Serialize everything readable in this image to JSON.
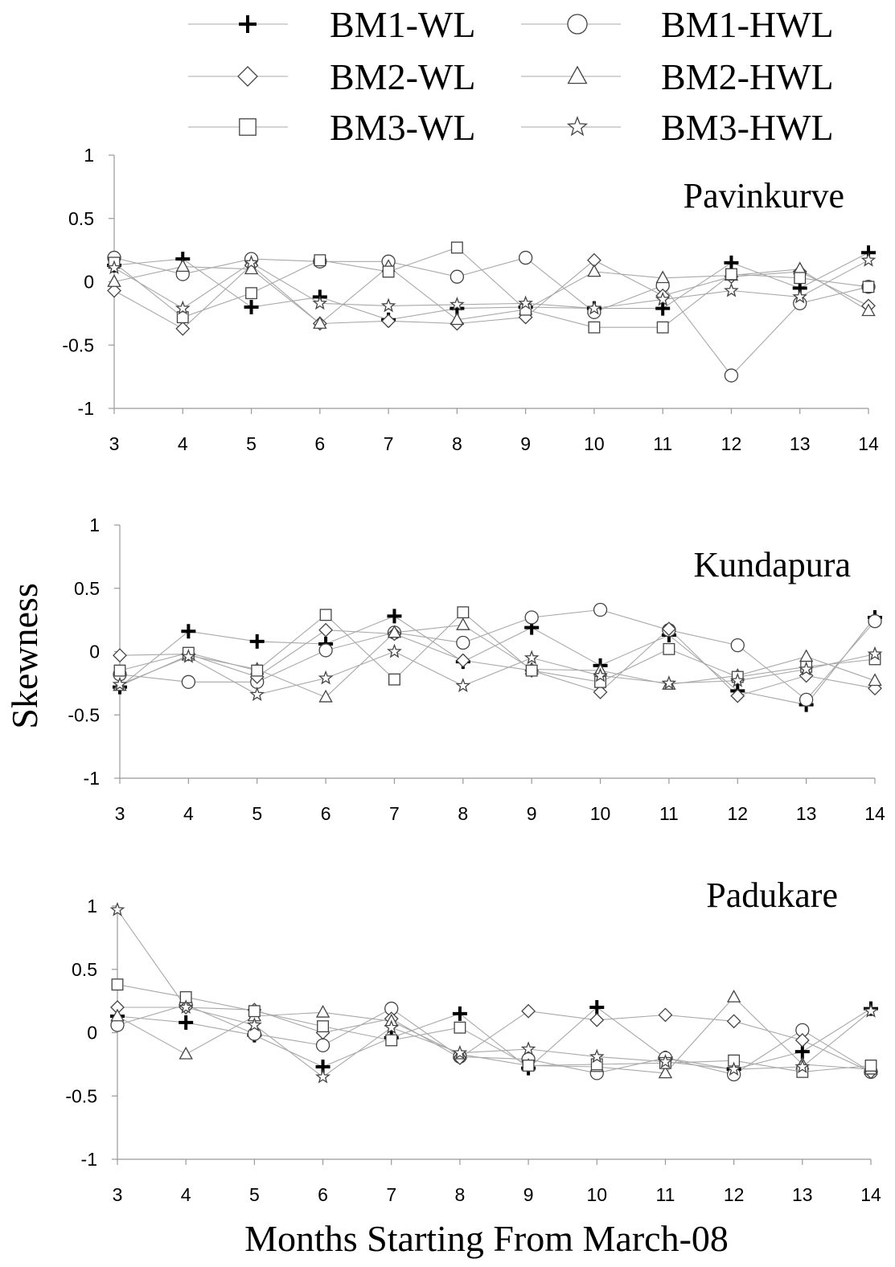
{
  "chart_data": {
    "type": "line",
    "ylabel": "Skewness",
    "xlabel": "Months Starting From March-08",
    "x": [
      3,
      4,
      5,
      6,
      7,
      8,
      9,
      10,
      11,
      12,
      13,
      14
    ],
    "xticks": [
      "3",
      "4",
      "5",
      "6",
      "7",
      "8",
      "9",
      "10",
      "11",
      "12",
      "13",
      "14"
    ],
    "ylim": [
      -1,
      1
    ],
    "yticks": [
      "1",
      "0.5",
      "0",
      "-0.5",
      "-1"
    ],
    "legend": [
      {
        "name": "BM1-WL",
        "marker": "plus"
      },
      {
        "name": "BM1-HWL",
        "marker": "circle"
      },
      {
        "name": "BM2-WL",
        "marker": "diamond"
      },
      {
        "name": "BM2-HWL",
        "marker": "triangle"
      },
      {
        "name": "BM3-WL",
        "marker": "square"
      },
      {
        "name": "BM3-HWL",
        "marker": "star"
      }
    ],
    "legend_position": "top",
    "panels": [
      {
        "title": "Pavinkurve",
        "series": [
          {
            "name": "BM1-WL",
            "values": [
              0.13,
              0.18,
              -0.2,
              -0.12,
              -0.3,
              -0.21,
              -0.2,
              -0.21,
              -0.21,
              0.15,
              -0.05,
              0.23
            ]
          },
          {
            "name": "BM1-HWL",
            "values": [
              0.19,
              0.06,
              0.18,
              0.16,
              0.16,
              0.04,
              0.19,
              -0.24,
              -0.03,
              -0.74,
              -0.17,
              -0.04
            ]
          },
          {
            "name": "BM2-WL",
            "values": [
              -0.07,
              -0.37,
              0.13,
              -0.33,
              -0.31,
              -0.33,
              -0.28,
              0.17,
              -0.11,
              0.04,
              0.08,
              -0.19
            ]
          },
          {
            "name": "BM2-HWL",
            "values": [
              0.0,
              0.12,
              0.1,
              -0.33,
              0.12,
              -0.3,
              -0.22,
              0.08,
              0.03,
              0.05,
              0.1,
              -0.23
            ]
          },
          {
            "name": "BM3-WL",
            "values": [
              0.15,
              -0.28,
              -0.09,
              0.17,
              0.08,
              0.27,
              -0.22,
              -0.36,
              -0.36,
              0.06,
              0.03,
              -0.04
            ]
          },
          {
            "name": "BM3-HWL",
            "values": [
              0.11,
              -0.21,
              0.15,
              -0.17,
              -0.19,
              -0.18,
              -0.17,
              -0.21,
              -0.14,
              -0.07,
              -0.12,
              0.17
            ]
          }
        ]
      },
      {
        "title": "Kundapura",
        "series": [
          {
            "name": "BM1-WL",
            "values": [
              -0.28,
              0.16,
              0.08,
              0.06,
              0.28,
              -0.08,
              0.19,
              -0.11,
              0.13,
              -0.31,
              -0.42,
              0.27
            ]
          },
          {
            "name": "BM1-HWL",
            "values": [
              -0.18,
              -0.24,
              -0.24,
              0.01,
              0.15,
              0.07,
              0.27,
              0.33,
              0.17,
              0.05,
              -0.38,
              0.24
            ]
          },
          {
            "name": "BM2-WL",
            "values": [
              -0.03,
              -0.02,
              -0.2,
              0.17,
              0.14,
              -0.07,
              -0.15,
              -0.32,
              0.18,
              -0.35,
              -0.19,
              -0.29
            ]
          },
          {
            "name": "BM2-HWL",
            "values": [
              -0.27,
              -0.03,
              -0.14,
              -0.36,
              0.15,
              0.21,
              -0.14,
              -0.15,
              -0.26,
              -0.19,
              -0.04,
              -0.23
            ]
          },
          {
            "name": "BM3-WL",
            "values": [
              -0.15,
              -0.01,
              -0.15,
              0.29,
              -0.22,
              0.31,
              -0.15,
              -0.24,
              0.02,
              -0.2,
              -0.12,
              -0.06
            ]
          },
          {
            "name": "BM3-HWL",
            "values": [
              -0.26,
              -0.04,
              -0.34,
              -0.21,
              0.0,
              -0.27,
              -0.05,
              -0.19,
              -0.25,
              -0.23,
              -0.14,
              -0.02
            ]
          }
        ]
      },
      {
        "title": "Padukare",
        "series": [
          {
            "name": "BM1-WL",
            "values": [
              0.13,
              0.08,
              -0.02,
              -0.27,
              -0.04,
              0.15,
              -0.28,
              0.2,
              -0.2,
              -0.29,
              -0.15,
              0.19
            ]
          },
          {
            "name": "BM1-HWL",
            "values": [
              0.06,
              0.22,
              -0.01,
              -0.1,
              0.19,
              -0.19,
              -0.21,
              -0.32,
              -0.2,
              -0.33,
              0.02,
              -0.31
            ]
          },
          {
            "name": "BM2-WL",
            "values": [
              0.2,
              0.2,
              0.18,
              0.0,
              0.11,
              -0.2,
              0.17,
              0.1,
              0.14,
              0.09,
              -0.06,
              -0.31
            ]
          },
          {
            "name": "BM2-HWL",
            "values": [
              0.13,
              -0.17,
              0.13,
              0.16,
              0.09,
              -0.17,
              -0.26,
              -0.27,
              -0.32,
              0.28,
              -0.25,
              -0.29
            ]
          },
          {
            "name": "BM3-WL",
            "values": [
              0.38,
              0.28,
              0.17,
              0.05,
              -0.06,
              0.04,
              -0.26,
              -0.25,
              -0.24,
              -0.22,
              -0.31,
              -0.26
            ]
          },
          {
            "name": "BM3-HWL",
            "values": [
              0.97,
              0.2,
              0.06,
              -0.35,
              0.04,
              -0.16,
              -0.13,
              -0.19,
              -0.23,
              -0.29,
              -0.27,
              0.17
            ]
          }
        ]
      }
    ]
  }
}
